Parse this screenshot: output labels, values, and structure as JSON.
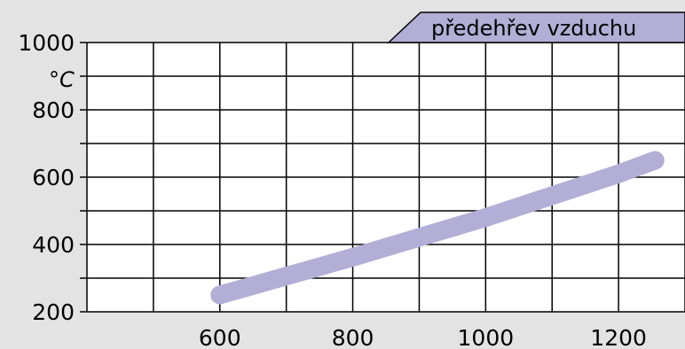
{
  "chart_data": {
    "type": "line",
    "title": "",
    "xlabel": "",
    "ylabel": "°C",
    "xlim": [
      400,
      1300
    ],
    "ylim": [
      200,
      1000
    ],
    "x_ticks": [
      600,
      800,
      1000,
      1200
    ],
    "y_ticks": [
      200,
      400,
      600,
      800,
      1000
    ],
    "grid": true,
    "series": [
      {
        "name": "předehřev vzduchu",
        "color": "#b3aed6",
        "points": [
          {
            "x": 600,
            "y": 250
          },
          {
            "x": 800,
            "y": 362
          },
          {
            "x": 1000,
            "y": 480
          },
          {
            "x": 1200,
            "y": 610
          },
          {
            "x": 1255,
            "y": 650
          }
        ]
      }
    ]
  }
}
